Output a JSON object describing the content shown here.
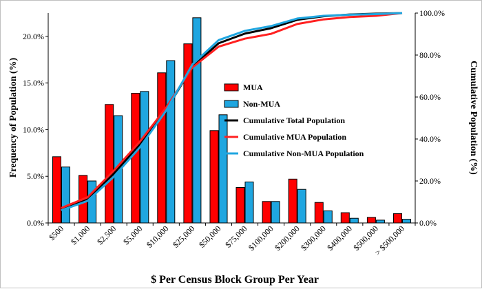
{
  "chart_data": {
    "type": "bar",
    "title": "",
    "xlabel": "$ Per Census Block Group Per Year",
    "ylabel": "Frequency of Population (%)",
    "y2label": "Cumulative Population (%)",
    "categories": [
      "$500",
      "$1,000",
      "$2,500",
      "$5,000",
      "$10,000",
      "$25,000",
      "$50,000",
      "$75,000",
      "$100,000",
      "$200,000",
      "$300,000",
      "$400,000",
      "$500,000",
      "> $500,000"
    ],
    "ylim": [
      0,
      22.5
    ],
    "y2lim": [
      0,
      100
    ],
    "yticks": [
      "0.0%",
      "5.0%",
      "10.0%",
      "15.0%",
      "20.0%"
    ],
    "y2ticks": [
      "0.0%",
      "20.0%",
      "40.0%",
      "60.0%",
      "80.0%",
      "100.0%"
    ],
    "series": [
      {
        "name": "MUA",
        "kind": "bar",
        "color": "#ff0000",
        "values": [
          7.1,
          5.1,
          12.7,
          13.9,
          16.1,
          19.2,
          9.9,
          3.8,
          2.3,
          4.7,
          2.2,
          1.1,
          0.6,
          1.0
        ]
      },
      {
        "name": "Non-MUA",
        "kind": "bar",
        "color": "#1fa6e0",
        "values": [
          6.0,
          4.5,
          11.5,
          14.1,
          17.4,
          22.0,
          11.6,
          4.4,
          2.3,
          3.6,
          1.3,
          0.5,
          0.3,
          0.4
        ]
      },
      {
        "name": "Cumulative Total Population",
        "kind": "line",
        "axis": "right",
        "color": "#000000",
        "values": [
          6.7,
          11.6,
          23.5,
          37.4,
          53.8,
          74.5,
          85.6,
          90.2,
          92.8,
          96.8,
          98.5,
          99.3,
          99.7,
          100
        ]
      },
      {
        "name": "Cumulative MUA Population",
        "kind": "line",
        "axis": "right",
        "color": "#ff2020",
        "values": [
          7.1,
          12.2,
          24.9,
          38.8,
          54.9,
          74.1,
          84.0,
          87.8,
          90.1,
          94.8,
          97.0,
          98.1,
          98.7,
          100
        ]
      },
      {
        "name": "Cumulative Non-MUA Population",
        "kind": "line",
        "axis": "right",
        "color": "#1fa6e0",
        "values": [
          6.0,
          10.5,
          22.0,
          36.1,
          53.5,
          75.5,
          87.1,
          91.5,
          93.8,
          97.4,
          98.7,
          99.2,
          99.5,
          100
        ]
      }
    ],
    "legend": "center-right",
    "grid": false
  }
}
